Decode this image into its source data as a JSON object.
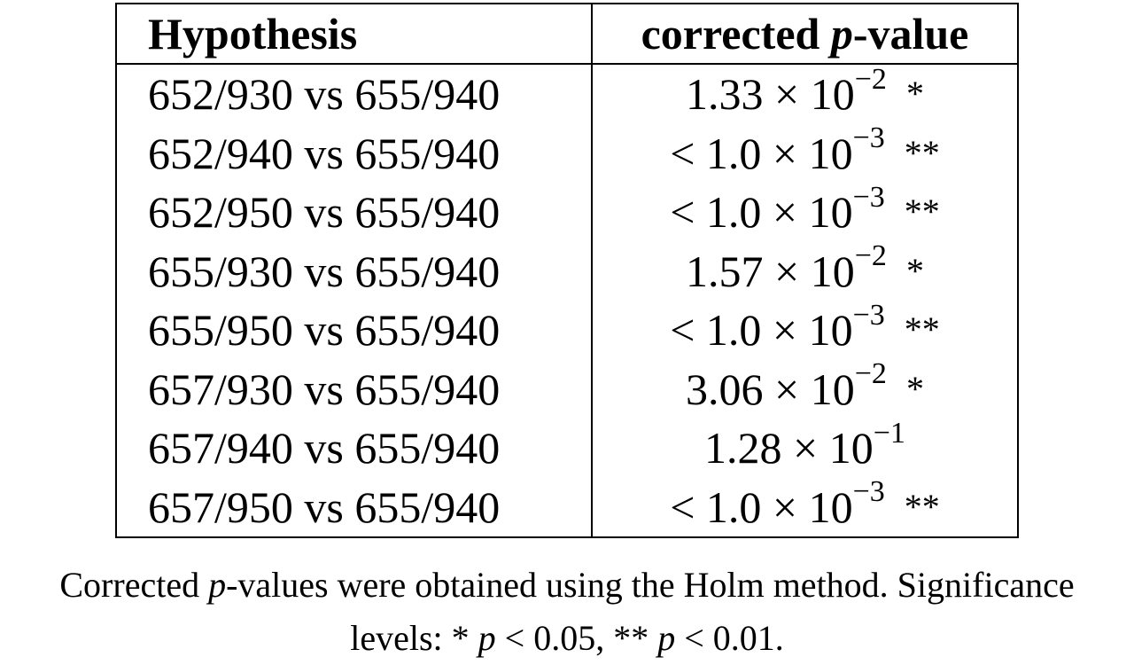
{
  "table": {
    "header": {
      "hypothesis": "Hypothesis",
      "pvalue_prefix": "corrected ",
      "pvalue_var": "p",
      "pvalue_suffix": "-value"
    },
    "rows": [
      {
        "hypothesis": "652/930 vs 655/940",
        "value": "1.33 × 10",
        "exp": "−2",
        "sig": "*"
      },
      {
        "hypothesis": "652/940 vs 655/940",
        "value": "< 1.0 × 10",
        "exp": "−3",
        "sig": "**"
      },
      {
        "hypothesis": "652/950 vs 655/940",
        "value": "< 1.0 × 10",
        "exp": "−3",
        "sig": "**"
      },
      {
        "hypothesis": "655/930 vs 655/940",
        "value": "1.57 × 10",
        "exp": "−2",
        "sig": "*"
      },
      {
        "hypothesis": "655/950 vs 655/940",
        "value": "< 1.0 × 10",
        "exp": "−3",
        "sig": "**"
      },
      {
        "hypothesis": "657/930 vs 655/940",
        "value": "3.06 × 10",
        "exp": "−2",
        "sig": "*"
      },
      {
        "hypothesis": "657/940 vs 655/940",
        "value": "1.28 × 10",
        "exp": "−1",
        "sig": ""
      },
      {
        "hypothesis": "657/950 vs 655/940",
        "value": "< 1.0 × 10",
        "exp": "−3",
        "sig": "**"
      }
    ]
  },
  "caption": {
    "line1_prefix": "Corrected ",
    "line1_var": "p",
    "line1_suffix": "-values were obtained using the Holm method. Significance",
    "line2_prefix": "levels:  * ",
    "line2_var1": "p",
    "line2_mid": " < 0.05,  ** ",
    "line2_var2": "p",
    "line2_end": " < 0.01."
  }
}
